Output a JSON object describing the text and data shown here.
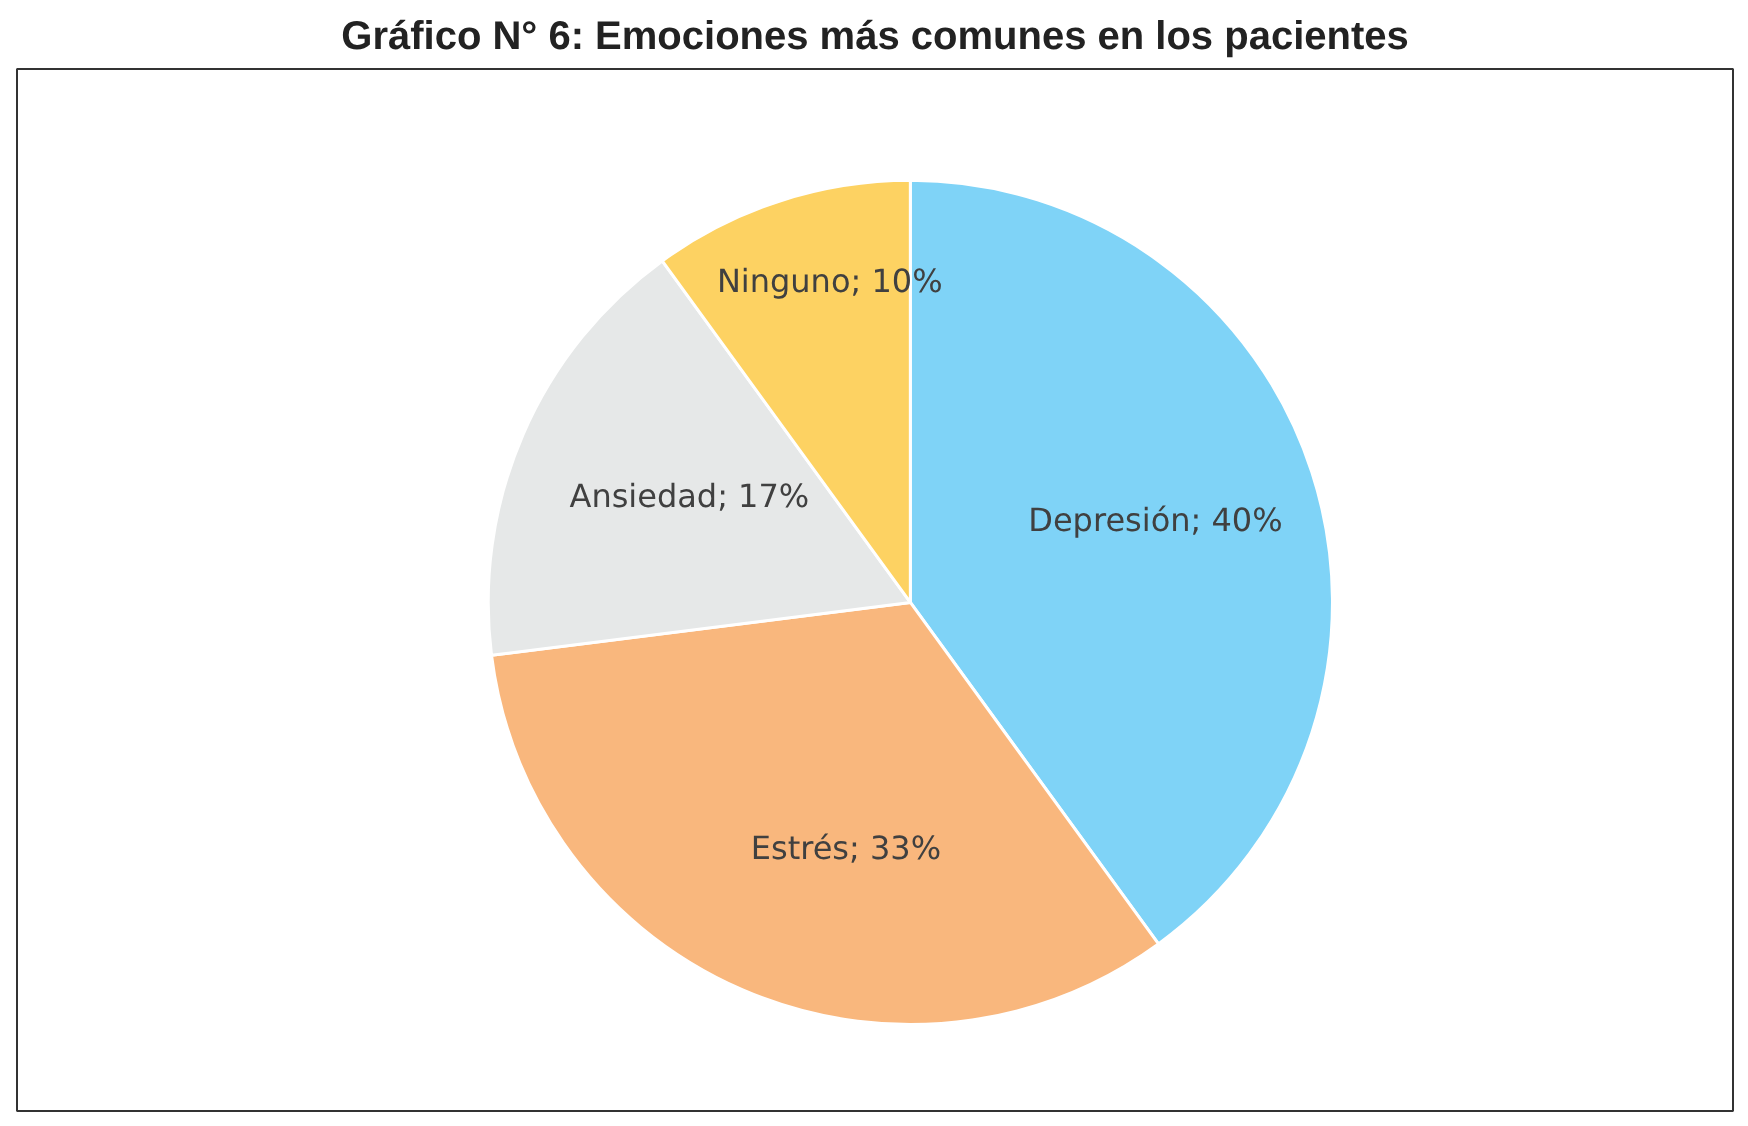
{
  "chart_data": {
    "type": "pie",
    "title": "Gráfico N° 6: Emociones más comunes en los pacientes",
    "categories": [
      "Depresión",
      "Estrés",
      "Ansiedad",
      "Ninguno"
    ],
    "values": [
      40,
      33,
      17,
      10
    ],
    "colors": [
      "#7fd3f7",
      "#f9b77d",
      "#e6e8e8",
      "#fdd262"
    ],
    "value_labels": [
      "; 40%",
      " ; 33%",
      "; 17%",
      "; 10%"
    ]
  }
}
